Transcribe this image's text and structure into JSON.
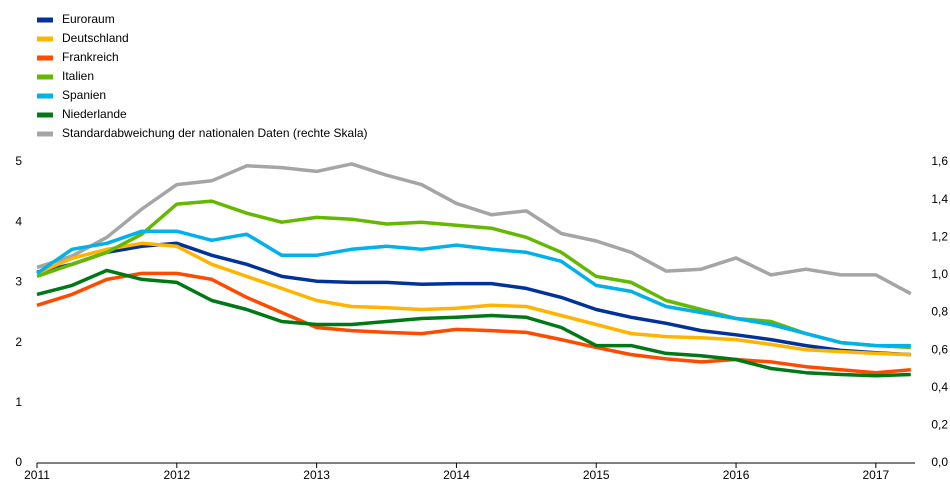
{
  "chart_data": {
    "type": "line",
    "x": [
      2011,
      2011.25,
      2011.5,
      2011.75,
      2012,
      2012.25,
      2012.5,
      2012.75,
      2013,
      2013.25,
      2013.5,
      2013.75,
      2014,
      2014.25,
      2014.5,
      2014.75,
      2015,
      2015.25,
      2015.5,
      2015.75,
      2016,
      2016.25,
      2016.5,
      2016.75,
      2017,
      2017.25
    ],
    "xlim": [
      2011,
      2017.28
    ],
    "xticks": [
      2011,
      2012,
      2013,
      2014,
      2015,
      2016,
      2017
    ],
    "ylim": [
      0,
      5
    ],
    "yticks": [
      0,
      1,
      2,
      3,
      4,
      5
    ],
    "y2lim": [
      0,
      1.6
    ],
    "y2ticks": [
      {
        "value": 0,
        "label": "0,0"
      },
      {
        "value": 0.2,
        "label": "0,2"
      },
      {
        "value": 0.4,
        "label": "0,4"
      },
      {
        "value": 0.6,
        "label": "0,6"
      },
      {
        "value": 0.8,
        "label": "0,8"
      },
      {
        "value": 1.0,
        "label": "1,0"
      },
      {
        "value": 1.2,
        "label": "1,2"
      },
      {
        "value": 1.4,
        "label": "1,4"
      },
      {
        "value": 1.6,
        "label": "1,6"
      }
    ],
    "legend": "top-left",
    "series": [
      {
        "name": "Euroraum",
        "color": "#003299",
        "values": [
          3.17,
          3.3,
          3.5,
          3.6,
          3.65,
          3.45,
          3.3,
          3.1,
          3.02,
          3.0,
          3.0,
          2.97,
          2.98,
          2.98,
          2.9,
          2.75,
          2.55,
          2.42,
          2.32,
          2.2,
          2.13,
          2.05,
          1.95,
          1.87,
          1.83,
          1.8
        ]
      },
      {
        "name": "Deutschland",
        "color": "#ffb400",
        "values": [
          3.15,
          3.4,
          3.55,
          3.65,
          3.6,
          3.3,
          3.1,
          2.9,
          2.7,
          2.6,
          2.58,
          2.55,
          2.57,
          2.62,
          2.6,
          2.45,
          2.3,
          2.15,
          2.1,
          2.08,
          2.05,
          1.97,
          1.88,
          1.85,
          1.82,
          1.8
        ]
      },
      {
        "name": "Frankreich",
        "color": "#ff4b00",
        "values": [
          2.62,
          2.8,
          3.05,
          3.15,
          3.15,
          3.05,
          2.75,
          2.5,
          2.25,
          2.2,
          2.17,
          2.15,
          2.22,
          2.2,
          2.17,
          2.05,
          1.92,
          1.8,
          1.73,
          1.68,
          1.72,
          1.68,
          1.6,
          1.55,
          1.5,
          1.55
        ]
      },
      {
        "name": "Italien",
        "color": "#65b800",
        "values": [
          3.1,
          3.3,
          3.5,
          3.8,
          4.3,
          4.35,
          4.15,
          4.0,
          4.08,
          4.05,
          3.97,
          4.0,
          3.95,
          3.9,
          3.75,
          3.5,
          3.1,
          3.0,
          2.7,
          2.55,
          2.4,
          2.35,
          2.15,
          2.0,
          1.95,
          1.92
        ]
      },
      {
        "name": "Spanien",
        "color": "#00b1ea",
        "values": [
          3.15,
          3.55,
          3.65,
          3.85,
          3.85,
          3.7,
          3.8,
          3.45,
          3.45,
          3.55,
          3.6,
          3.55,
          3.62,
          3.55,
          3.5,
          3.35,
          2.95,
          2.85,
          2.6,
          2.5,
          2.4,
          2.3,
          2.15,
          2.0,
          1.95,
          1.95
        ]
      },
      {
        "name": "Niederlande",
        "color": "#007816",
        "values": [
          2.8,
          2.95,
          3.2,
          3.05,
          3.0,
          2.7,
          2.55,
          2.35,
          2.3,
          2.3,
          2.35,
          2.4,
          2.42,
          2.45,
          2.42,
          2.25,
          1.95,
          1.95,
          1.82,
          1.78,
          1.72,
          1.57,
          1.5,
          1.47,
          1.45,
          1.47
        ]
      },
      {
        "name": "Standardabweichung der nationalen Daten (rechte Skala)",
        "color": "#a5a5a5",
        "axis": "y2",
        "values": [
          1.04,
          1.1,
          1.2,
          1.35,
          1.48,
          1.5,
          1.58,
          1.57,
          1.55,
          1.59,
          1.53,
          1.48,
          1.38,
          1.32,
          1.34,
          1.22,
          1.18,
          1.12,
          1.02,
          1.03,
          1.09,
          1.0,
          1.03,
          1.0,
          1.0,
          0.9
        ]
      }
    ]
  }
}
